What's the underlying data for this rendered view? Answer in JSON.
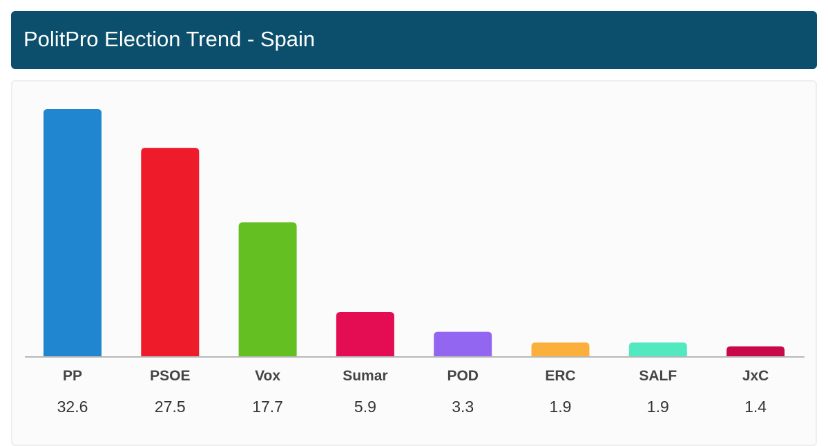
{
  "header": {
    "title": "PolitPro Election Trend - Spain"
  },
  "chart_data": {
    "type": "bar",
    "categories": [
      "PP",
      "PSOE",
      "Vox",
      "Sumar",
      "POD",
      "ERC",
      "SALF",
      "JxC"
    ],
    "values": [
      32.6,
      27.5,
      17.7,
      5.9,
      3.3,
      1.9,
      1.9,
      1.4
    ],
    "value_labels": [
      "32.6",
      "27.5",
      "17.7",
      "5.9",
      "3.3",
      "1.9",
      "1.9",
      "1.4"
    ],
    "colors": [
      "#1f86cf",
      "#ee1c2a",
      "#64bf22",
      "#e40c53",
      "#9266f0",
      "#fcb03c",
      "#52e8c0",
      "#c8084b"
    ],
    "title": "",
    "xlabel": "",
    "ylabel": "",
    "ylim": [
      0,
      32.6
    ],
    "grid": false,
    "legend": "none"
  }
}
